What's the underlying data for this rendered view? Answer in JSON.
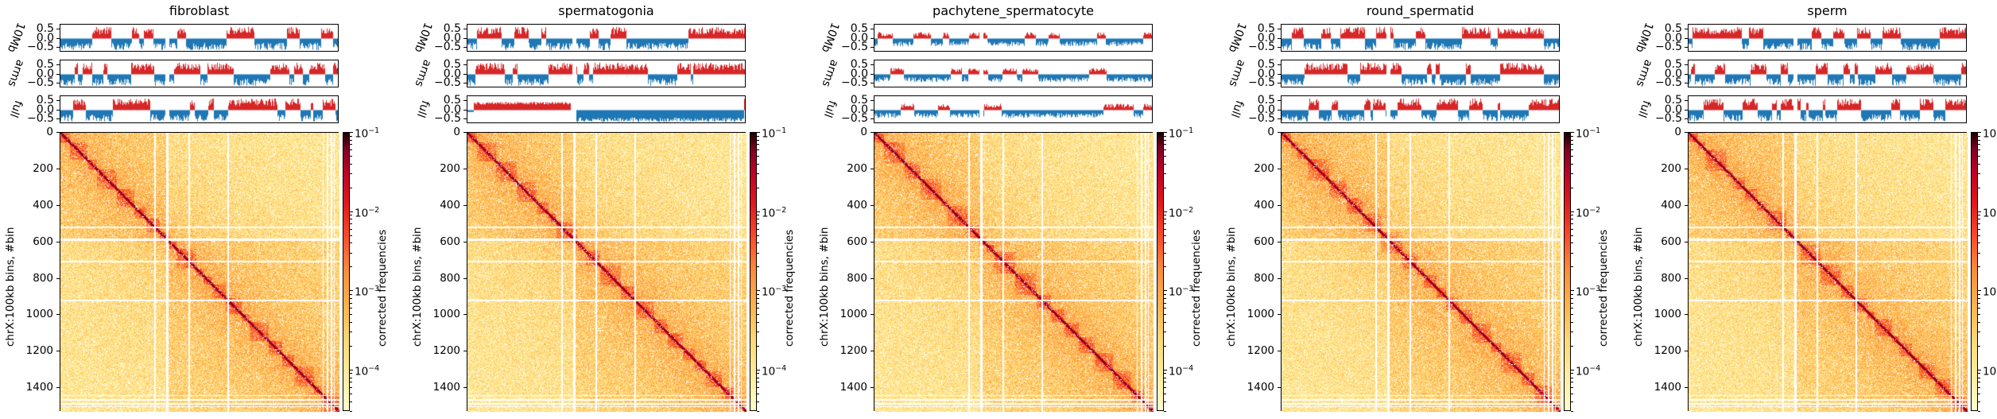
{
  "chart_data": {
    "type": "heatmap",
    "description": "Hi-C contact maps of chrX at 100kb resolution for five cell types, each with three compartment eigenvector tracks",
    "panels": [
      {
        "title": "fibroblast",
        "full_track_profile": "alternating"
      },
      {
        "title": "spermatogonia",
        "full_track_profile": "two-arm: positive first arm, negative second arm"
      },
      {
        "title": "pachytene_spermatocyte",
        "full_track_profile": "mostly negative, weak A"
      },
      {
        "title": "round_spermatid",
        "full_track_profile": "alternating"
      },
      {
        "title": "sperm",
        "full_track_profile": "alternating"
      }
    ],
    "tracks": {
      "labels": [
        "10Mb",
        "arms",
        "full"
      ],
      "yticks": [
        "0.5",
        "0.0",
        "−0.5"
      ],
      "ylim": [
        -0.75,
        0.75
      ],
      "positive_color": "#d62728",
      "negative_color": "#1f77b4"
    },
    "heatmap": {
      "ylabel": "chrX:100kb bins, #bin",
      "yticks": [
        0,
        200,
        400,
        600,
        800,
        1000,
        1200,
        1400
      ],
      "n_bins": 1530,
      "centromere_gap_bin": 580,
      "colormap": "YlOrRd-to-black (afmhot_r like)",
      "scale": "log"
    },
    "colorbar": {
      "label": "corrected frequencies",
      "ticks": [
        {
          "base": "10",
          "exp": "−1"
        },
        {
          "base": "10",
          "exp": "−2"
        },
        {
          "base": "10",
          "exp": "−3"
        },
        {
          "base": "10",
          "exp": "−4"
        }
      ],
      "range": [
        3e-05,
        0.1
      ]
    }
  }
}
